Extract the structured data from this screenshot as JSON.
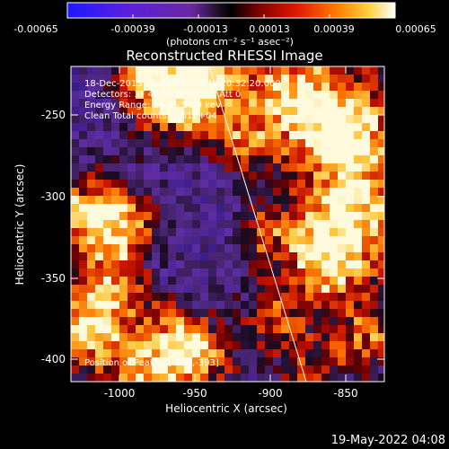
{
  "colorbar": {
    "tick_labels": [
      "-0.00065",
      "-0.00039",
      "-0.00013",
      "0.00013",
      "0.00039",
      "0.00065"
    ],
    "unit_label": "(photons cm⁻² s⁻¹ asec⁻²)"
  },
  "plot": {
    "title": "Reconstructed RHESSI Image",
    "xlabel": "Heliocentric X (arcsec)",
    "ylabel": "Heliocentric Y (arcsec)",
    "x_ticks": [
      "-1000",
      "-950",
      "-900",
      "-850"
    ],
    "y_ticks": [
      "-250",
      "-300",
      "-350",
      "-400"
    ],
    "info_lines": [
      "18-Dec-2013 20:26:20.000 to 20:32:20.000",
      "Detectors: 3F 4F 5F 6F 7F 8F, Att 0",
      "Energy Range: 25.0 - 50.0 keV",
      "Clean     Total counts: 1.61E+04"
    ],
    "peak_label": "Position of Peak = [-950,-393]"
  },
  "footer": {
    "timestamp": "19-May-2022 04:08"
  }
}
